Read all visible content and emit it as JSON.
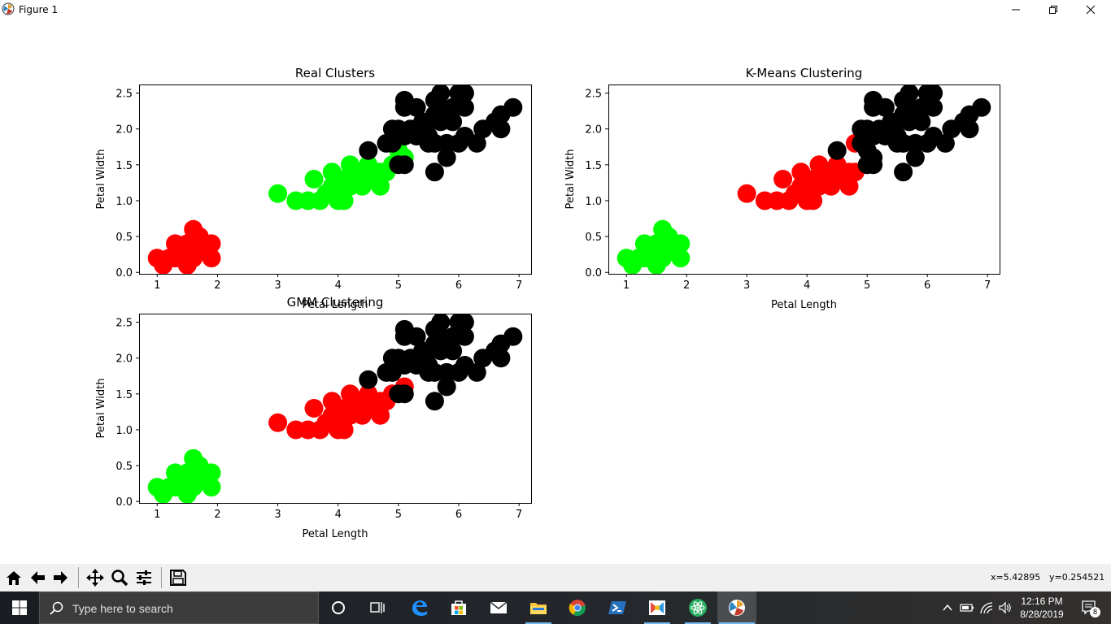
{
  "window": {
    "title": "Figure 1"
  },
  "toolbar": {
    "buttons": [
      "home-icon",
      "back-arrow-icon",
      "forward-arrow-icon",
      "pan-icon",
      "zoom-icon",
      "configure-subplots-icon",
      "save-icon"
    ],
    "x_readout": "x=5.42895",
    "y_readout": "y=0.254521"
  },
  "taskbar": {
    "search_placeholder": "Type here to search",
    "time": "12:16 PM",
    "date": "8/28/2019",
    "notification_count": "8"
  },
  "colors": {
    "red": "#ff0000",
    "green": "#00ff00",
    "black": "#000000"
  },
  "chart_data": [
    {
      "type": "scatter",
      "title": "Real Clusters",
      "xlabel": "Petal Length",
      "ylabel": "Petal Width",
      "xlim": [
        0.7,
        7.2
      ],
      "ylim": [
        -0.02,
        2.62
      ],
      "xticks": [
        "1",
        "2",
        "3",
        "4",
        "5",
        "6",
        "7"
      ],
      "yticks": [
        "0.0",
        "0.5",
        "1.0",
        "1.5",
        "2.0",
        "2.5"
      ],
      "series": [
        {
          "color": "red",
          "points": [
            [
              1.0,
              0.2
            ],
            [
              1.1,
              0.1
            ],
            [
              1.2,
              0.2
            ],
            [
              1.3,
              0.2
            ],
            [
              1.3,
              0.4
            ],
            [
              1.4,
              0.2
            ],
            [
              1.4,
              0.3
            ],
            [
              1.5,
              0.1
            ],
            [
              1.5,
              0.2
            ],
            [
              1.5,
              0.4
            ],
            [
              1.6,
              0.2
            ],
            [
              1.6,
              0.6
            ],
            [
              1.7,
              0.3
            ],
            [
              1.7,
              0.5
            ],
            [
              1.9,
              0.2
            ],
            [
              1.9,
              0.4
            ]
          ]
        },
        {
          "color": "green",
          "points": [
            [
              3.0,
              1.1
            ],
            [
              3.3,
              1.0
            ],
            [
              3.5,
              1.0
            ],
            [
              3.6,
              1.3
            ],
            [
              3.7,
              1.0
            ],
            [
              3.8,
              1.1
            ],
            [
              3.9,
              1.1
            ],
            [
              3.9,
              1.2
            ],
            [
              3.9,
              1.4
            ],
            [
              4.0,
              1.0
            ],
            [
              4.0,
              1.2
            ],
            [
              4.0,
              1.3
            ],
            [
              4.1,
              1.0
            ],
            [
              4.1,
              1.3
            ],
            [
              4.2,
              1.2
            ],
            [
              4.2,
              1.5
            ],
            [
              4.3,
              1.3
            ],
            [
              4.4,
              1.2
            ],
            [
              4.4,
              1.4
            ],
            [
              4.5,
              1.3
            ],
            [
              4.5,
              1.5
            ],
            [
              4.6,
              1.4
            ],
            [
              4.7,
              1.2
            ],
            [
              4.7,
              1.4
            ],
            [
              4.8,
              1.4
            ],
            [
              4.9,
              1.5
            ],
            [
              5.0,
              1.7
            ],
            [
              5.1,
              1.6
            ]
          ]
        },
        {
          "color": "black",
          "points": [
            [
              4.5,
              1.7
            ],
            [
              4.8,
              1.8
            ],
            [
              4.9,
              1.8
            ],
            [
              4.9,
              2.0
            ],
            [
              5.0,
              1.5
            ],
            [
              5.0,
              2.0
            ],
            [
              5.1,
              1.5
            ],
            [
              5.1,
              1.9
            ],
            [
              5.1,
              2.3
            ],
            [
              5.1,
              2.4
            ],
            [
              5.2,
              2.0
            ],
            [
              5.3,
              1.9
            ],
            [
              5.3,
              2.3
            ],
            [
              5.4,
              2.1
            ],
            [
              5.5,
              1.8
            ],
            [
              5.5,
              2.1
            ],
            [
              5.6,
              1.4
            ],
            [
              5.6,
              2.2
            ],
            [
              5.6,
              2.4
            ],
            [
              5.7,
              2.1
            ],
            [
              5.7,
              2.3
            ],
            [
              5.7,
              2.5
            ],
            [
              5.8,
              1.8
            ],
            [
              5.8,
              2.2
            ],
            [
              5.9,
              2.1
            ],
            [
              5.9,
              2.3
            ],
            [
              6.0,
              1.8
            ],
            [
              6.0,
              2.5
            ],
            [
              6.1,
              1.9
            ],
            [
              6.1,
              2.3
            ],
            [
              6.1,
              2.5
            ],
            [
              6.3,
              1.8
            ],
            [
              6.4,
              2.0
            ],
            [
              6.6,
              2.1
            ],
            [
              6.7,
              2.2
            ],
            [
              6.7,
              2.0
            ],
            [
              6.9,
              2.3
            ],
            [
              5.8,
              1.6
            ],
            [
              5.6,
              1.8
            ],
            [
              5.5,
              1.9
            ]
          ]
        }
      ]
    },
    {
      "type": "scatter",
      "title": "K-Means Clustering",
      "xlabel": "Petal Length",
      "ylabel": "Petal Width",
      "xlim": [
        0.7,
        7.2
      ],
      "ylim": [
        -0.02,
        2.62
      ],
      "xticks": [
        "1",
        "2",
        "3",
        "4",
        "5",
        "6",
        "7"
      ],
      "yticks": [
        "0.0",
        "0.5",
        "1.0",
        "1.5",
        "2.0",
        "2.5"
      ],
      "series": [
        {
          "color": "green",
          "points": [
            [
              1.0,
              0.2
            ],
            [
              1.1,
              0.1
            ],
            [
              1.2,
              0.2
            ],
            [
              1.3,
              0.2
            ],
            [
              1.3,
              0.4
            ],
            [
              1.4,
              0.2
            ],
            [
              1.4,
              0.3
            ],
            [
              1.5,
              0.1
            ],
            [
              1.5,
              0.2
            ],
            [
              1.5,
              0.4
            ],
            [
              1.6,
              0.2
            ],
            [
              1.6,
              0.6
            ],
            [
              1.7,
              0.3
            ],
            [
              1.7,
              0.5
            ],
            [
              1.9,
              0.2
            ],
            [
              1.9,
              0.4
            ]
          ]
        },
        {
          "color": "red",
          "points": [
            [
              3.0,
              1.1
            ],
            [
              3.3,
              1.0
            ],
            [
              3.5,
              1.0
            ],
            [
              3.6,
              1.3
            ],
            [
              3.7,
              1.0
            ],
            [
              3.8,
              1.1
            ],
            [
              3.9,
              1.1
            ],
            [
              3.9,
              1.2
            ],
            [
              3.9,
              1.4
            ],
            [
              4.0,
              1.0
            ],
            [
              4.0,
              1.2
            ],
            [
              4.0,
              1.3
            ],
            [
              4.1,
              1.0
            ],
            [
              4.1,
              1.3
            ],
            [
              4.2,
              1.2
            ],
            [
              4.2,
              1.5
            ],
            [
              4.3,
              1.3
            ],
            [
              4.4,
              1.2
            ],
            [
              4.4,
              1.4
            ],
            [
              4.5,
              1.3
            ],
            [
              4.5,
              1.5
            ],
            [
              4.6,
              1.4
            ],
            [
              4.7,
              1.2
            ],
            [
              4.7,
              1.4
            ],
            [
              4.8,
              1.4
            ],
            [
              4.8,
              1.8
            ]
          ]
        },
        {
          "color": "black",
          "points": [
            [
              4.5,
              1.7
            ],
            [
              4.9,
              1.8
            ],
            [
              4.9,
              2.0
            ],
            [
              5.0,
              1.5
            ],
            [
              5.0,
              1.7
            ],
            [
              5.0,
              2.0
            ],
            [
              5.1,
              1.5
            ],
            [
              5.1,
              1.6
            ],
            [
              5.1,
              1.9
            ],
            [
              5.1,
              2.3
            ],
            [
              5.1,
              2.4
            ],
            [
              5.2,
              2.0
            ],
            [
              5.3,
              1.9
            ],
            [
              5.3,
              2.3
            ],
            [
              5.4,
              2.1
            ],
            [
              5.5,
              1.8
            ],
            [
              5.5,
              2.1
            ],
            [
              5.6,
              1.4
            ],
            [
              5.6,
              2.2
            ],
            [
              5.6,
              2.4
            ],
            [
              5.7,
              2.1
            ],
            [
              5.7,
              2.3
            ],
            [
              5.7,
              2.5
            ],
            [
              5.8,
              1.8
            ],
            [
              5.8,
              2.2
            ],
            [
              5.9,
              2.1
            ],
            [
              5.9,
              2.3
            ],
            [
              6.0,
              1.8
            ],
            [
              6.0,
              2.5
            ],
            [
              6.1,
              1.9
            ],
            [
              6.1,
              2.3
            ],
            [
              6.1,
              2.5
            ],
            [
              6.3,
              1.8
            ],
            [
              6.4,
              2.0
            ],
            [
              6.6,
              2.1
            ],
            [
              6.7,
              2.2
            ],
            [
              6.7,
              2.0
            ],
            [
              6.9,
              2.3
            ],
            [
              5.8,
              1.6
            ],
            [
              5.6,
              1.8
            ],
            [
              5.5,
              1.9
            ]
          ]
        }
      ]
    },
    {
      "type": "scatter",
      "title": "GMM Clustering",
      "xlabel": "Petal Length",
      "ylabel": "Petal Width",
      "xlim": [
        0.7,
        7.2
      ],
      "ylim": [
        -0.02,
        2.62
      ],
      "xticks": [
        "1",
        "2",
        "3",
        "4",
        "5",
        "6",
        "7"
      ],
      "yticks": [
        "0.0",
        "0.5",
        "1.0",
        "1.5",
        "2.0",
        "2.5"
      ],
      "series": [
        {
          "color": "green",
          "points": [
            [
              1.0,
              0.2
            ],
            [
              1.1,
              0.1
            ],
            [
              1.2,
              0.2
            ],
            [
              1.3,
              0.2
            ],
            [
              1.3,
              0.4
            ],
            [
              1.4,
              0.2
            ],
            [
              1.4,
              0.3
            ],
            [
              1.5,
              0.1
            ],
            [
              1.5,
              0.2
            ],
            [
              1.5,
              0.4
            ],
            [
              1.6,
              0.2
            ],
            [
              1.6,
              0.6
            ],
            [
              1.7,
              0.3
            ],
            [
              1.7,
              0.5
            ],
            [
              1.9,
              0.2
            ],
            [
              1.9,
              0.4
            ]
          ]
        },
        {
          "color": "red",
          "points": [
            [
              3.0,
              1.1
            ],
            [
              3.3,
              1.0
            ],
            [
              3.5,
              1.0
            ],
            [
              3.6,
              1.3
            ],
            [
              3.7,
              1.0
            ],
            [
              3.8,
              1.1
            ],
            [
              3.9,
              1.1
            ],
            [
              3.9,
              1.2
            ],
            [
              3.9,
              1.4
            ],
            [
              4.0,
              1.0
            ],
            [
              4.0,
              1.2
            ],
            [
              4.0,
              1.3
            ],
            [
              4.1,
              1.0
            ],
            [
              4.1,
              1.3
            ],
            [
              4.2,
              1.2
            ],
            [
              4.2,
              1.5
            ],
            [
              4.3,
              1.3
            ],
            [
              4.4,
              1.2
            ],
            [
              4.4,
              1.4
            ],
            [
              4.5,
              1.3
            ],
            [
              4.5,
              1.5
            ],
            [
              4.6,
              1.4
            ],
            [
              4.7,
              1.2
            ],
            [
              4.7,
              1.4
            ],
            [
              4.8,
              1.4
            ],
            [
              4.9,
              1.5
            ],
            [
              5.1,
              1.6
            ]
          ]
        },
        {
          "color": "black",
          "points": [
            [
              4.5,
              1.7
            ],
            [
              4.8,
              1.8
            ],
            [
              4.9,
              1.8
            ],
            [
              4.9,
              2.0
            ],
            [
              5.0,
              1.5
            ],
            [
              5.0,
              2.0
            ],
            [
              5.1,
              1.5
            ],
            [
              5.1,
              1.9
            ],
            [
              5.1,
              2.3
            ],
            [
              5.1,
              2.4
            ],
            [
              5.2,
              2.0
            ],
            [
              5.3,
              1.9
            ],
            [
              5.3,
              2.3
            ],
            [
              5.4,
              2.1
            ],
            [
              5.5,
              1.8
            ],
            [
              5.5,
              2.1
            ],
            [
              5.6,
              1.4
            ],
            [
              5.6,
              2.2
            ],
            [
              5.6,
              2.4
            ],
            [
              5.7,
              2.1
            ],
            [
              5.7,
              2.3
            ],
            [
              5.7,
              2.5
            ],
            [
              5.8,
              1.8
            ],
            [
              5.8,
              2.2
            ],
            [
              5.9,
              2.1
            ],
            [
              5.9,
              2.3
            ],
            [
              6.0,
              1.8
            ],
            [
              6.0,
              2.5
            ],
            [
              6.1,
              1.9
            ],
            [
              6.1,
              2.3
            ],
            [
              6.1,
              2.5
            ],
            [
              6.3,
              1.8
            ],
            [
              6.4,
              2.0
            ],
            [
              6.6,
              2.1
            ],
            [
              6.7,
              2.2
            ],
            [
              6.7,
              2.0
            ],
            [
              6.9,
              2.3
            ],
            [
              5.8,
              1.6
            ],
            [
              5.6,
              1.8
            ],
            [
              5.5,
              1.9
            ]
          ]
        }
      ]
    }
  ]
}
